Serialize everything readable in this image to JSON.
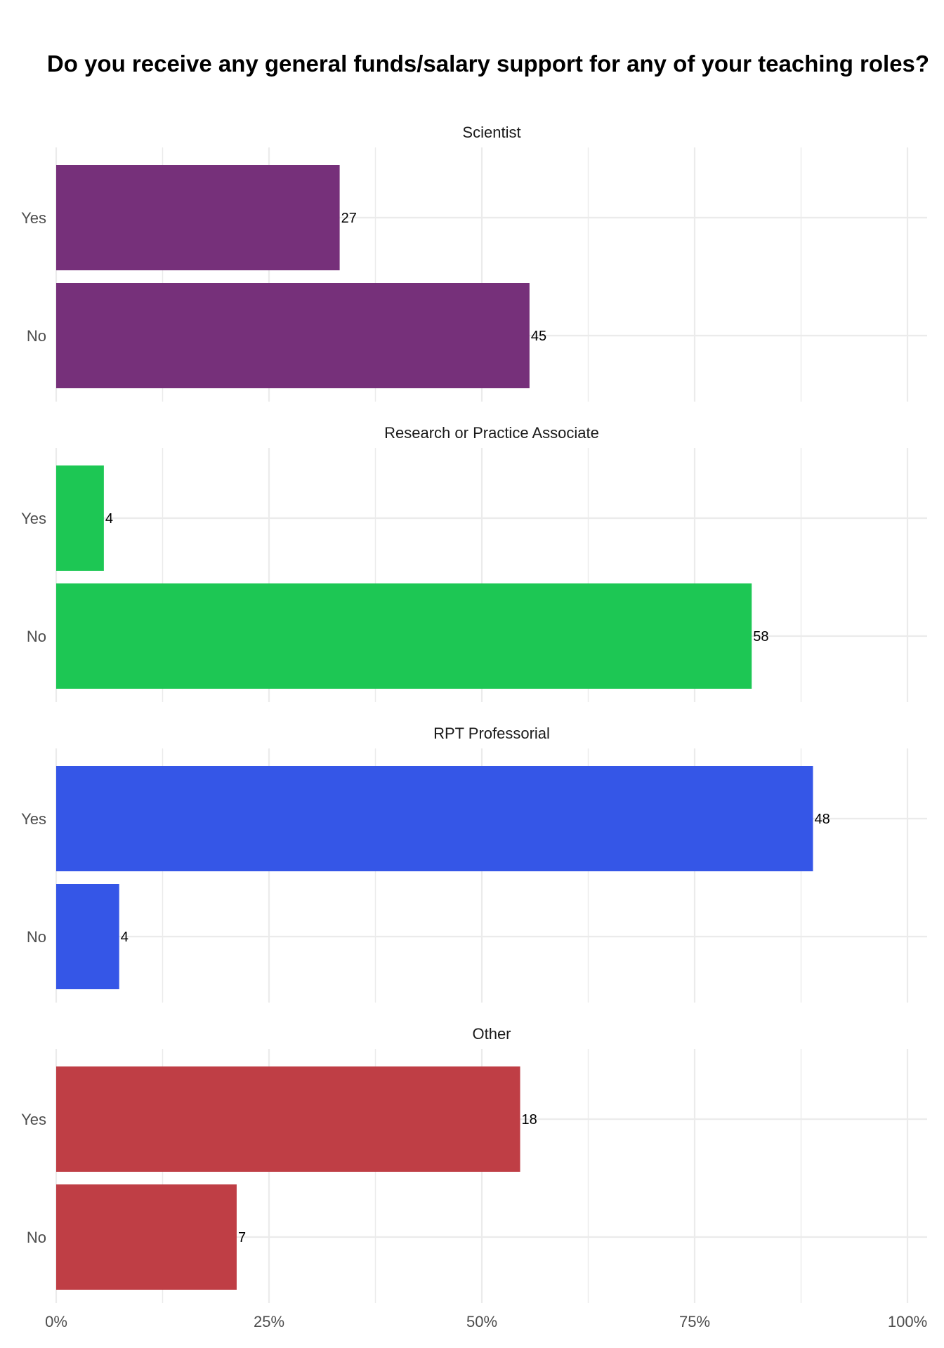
{
  "chart_data": {
    "type": "bar",
    "orientation": "horizontal",
    "title": "Do you receive any general funds/salary support for any of your teaching roles?",
    "xlabel": "",
    "ylabel": "",
    "xlim": [
      0,
      1
    ],
    "x_ticks": [
      "0%",
      "25%",
      "50%",
      "75%",
      "100%"
    ],
    "categories": [
      "Yes",
      "No"
    ],
    "grid": true,
    "legend": "none",
    "facets": [
      {
        "name": "Scientist",
        "color": "#76307A",
        "bars": [
          {
            "category": "Yes",
            "count": 27,
            "share": 0.333
          },
          {
            "category": "No",
            "count": 45,
            "share": 0.556
          }
        ]
      },
      {
        "name": "Research or Practice Associate",
        "color": "#1DC754",
        "bars": [
          {
            "category": "Yes",
            "count": 4,
            "share": 0.056
          },
          {
            "category": "No",
            "count": 58,
            "share": 0.817
          }
        ]
      },
      {
        "name": "RPT Professorial",
        "color": "#3556E7",
        "bars": [
          {
            "category": "Yes",
            "count": 48,
            "share": 0.889
          },
          {
            "category": "No",
            "count": 4,
            "share": 0.074
          }
        ]
      },
      {
        "name": "Other",
        "color": "#BF3E45",
        "bars": [
          {
            "category": "Yes",
            "count": 18,
            "share": 0.545
          },
          {
            "category": "No",
            "count": 7,
            "share": 0.212
          }
        ]
      }
    ]
  }
}
